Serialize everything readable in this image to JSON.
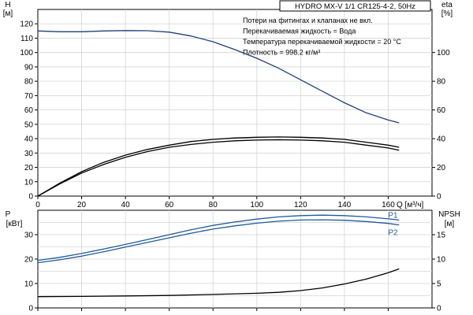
{
  "chart_data": [
    {
      "type": "line",
      "title": "HYDRO MX-V 1/1 CR125-4-2, 50Hz",
      "notes": [
        "Потери на фитингах и клапанах не вкл.",
        "Перекачиваемая жидкость = Вода",
        "Температура перекачиваемой жидкости = 20 °C",
        "Плотность = 998.2 кг/м³"
      ],
      "xlabel": "Q [м³/ч]",
      "xlim": [
        0,
        180
      ],
      "x_ticks": [
        0,
        20,
        40,
        60,
        80,
        100,
        120,
        140,
        160
      ],
      "ylabel_left": [
        "H",
        "[м]"
      ],
      "ylim_left": [
        0,
        130
      ],
      "y_ticks_left": [
        0,
        10,
        20,
        30,
        40,
        50,
        60,
        70,
        80,
        90,
        100,
        110,
        120
      ],
      "ylabel_right": [
        "eta",
        "[%]"
      ],
      "ylim_right": [
        0,
        130
      ],
      "y_ticks_right": [
        0,
        20,
        40,
        60,
        80,
        100
      ],
      "grid": true,
      "series": [
        {
          "axis": "left",
          "color": "#1f3f7a",
          "x": [
            0,
            10,
            20,
            30,
            40,
            50,
            60,
            70,
            80,
            90,
            100,
            110,
            120,
            130,
            140,
            150,
            160,
            165
          ],
          "y": [
            115,
            114.5,
            114.5,
            115,
            115.3,
            115.2,
            114.2,
            111.5,
            107.5,
            102,
            96,
            89,
            81,
            73,
            65,
            58,
            53,
            51
          ]
        },
        {
          "axis": "right",
          "color": "#000000",
          "x": [
            0,
            10,
            20,
            30,
            40,
            50,
            60,
            70,
            80,
            90,
            100,
            110,
            120,
            130,
            140,
            150,
            160,
            165
          ],
          "y": [
            0,
            9,
            17,
            23.5,
            28.5,
            32.5,
            35.5,
            38,
            39.5,
            40.5,
            41,
            41.2,
            41,
            40.5,
            39.5,
            37.5,
            35.5,
            34
          ]
        },
        {
          "axis": "right",
          "color": "#000000",
          "x": [
            0,
            10,
            20,
            30,
            40,
            50,
            60,
            70,
            80,
            90,
            100,
            110,
            120,
            130,
            140,
            150,
            160,
            165
          ],
          "y": [
            0,
            8.5,
            16,
            22,
            27,
            31,
            34,
            36,
            37.5,
            38.5,
            39,
            39.2,
            39,
            38.5,
            37.5,
            35.5,
            33.5,
            32
          ]
        }
      ]
    },
    {
      "type": "line",
      "xlim": [
        0,
        180
      ],
      "ylabel_left": [
        "P",
        "[кВт]"
      ],
      "ylim_left": [
        0,
        40
      ],
      "y_ticks_left": [
        0,
        10,
        20,
        30
      ],
      "ylabel_right": [
        "NPSH",
        "[м]"
      ],
      "ylim_right": [
        0,
        20
      ],
      "y_ticks_right": [
        0,
        5,
        10,
        15
      ],
      "grid": true,
      "series": [
        {
          "name": "P1",
          "axis": "left",
          "color": "#1f5a9a",
          "x": [
            0,
            10,
            20,
            30,
            40,
            50,
            60,
            70,
            80,
            90,
            100,
            110,
            120,
            130,
            140,
            150,
            160,
            165
          ],
          "y": [
            19.5,
            20.7,
            22.3,
            24.1,
            26,
            28,
            30,
            32,
            33.8,
            35.2,
            36.4,
            37.3,
            37.8,
            38,
            37.8,
            37.3,
            36.5,
            36
          ]
        },
        {
          "name": "P2",
          "axis": "left",
          "color": "#1f5a9a",
          "x": [
            0,
            10,
            20,
            30,
            40,
            50,
            60,
            70,
            80,
            90,
            100,
            110,
            120,
            130,
            140,
            150,
            160,
            165
          ],
          "y": [
            18.5,
            19.7,
            21.2,
            23,
            24.9,
            26.8,
            28.7,
            30.6,
            32.3,
            33.6,
            34.7,
            35.5,
            36,
            36.1,
            35.9,
            35.4,
            34.6,
            34
          ]
        },
        {
          "axis": "right",
          "color": "#000000",
          "x": [
            0,
            20,
            40,
            60,
            80,
            100,
            110,
            120,
            130,
            140,
            150,
            160,
            165
          ],
          "y": [
            2.3,
            2.35,
            2.45,
            2.55,
            2.75,
            3.0,
            3.2,
            3.55,
            4.1,
            4.9,
            5.9,
            7.2,
            8.0
          ]
        }
      ]
    }
  ]
}
